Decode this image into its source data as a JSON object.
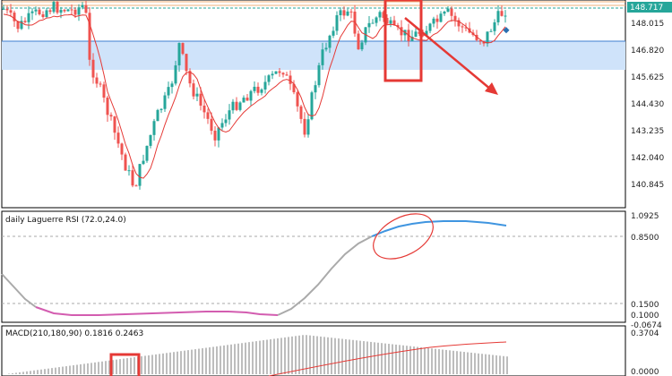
{
  "main_pane": {
    "price_levels": [
      "148.015",
      "146.820",
      "145.625",
      "144.430",
      "143.235",
      "142.040",
      "140.845"
    ],
    "current_price": "148.717",
    "colors": {
      "up": "#26a69a",
      "down": "#ef5350",
      "ma": "#e53935",
      "zone": "#cfe3fa",
      "annotation": "#e53935",
      "price_tag": "#26a69a"
    }
  },
  "laguerre_pane": {
    "title": "daily Laguerre RSI (72.0,24.0)",
    "levels": [
      "1.0925",
      "0.8500",
      "0.1500",
      "0.1000"
    ],
    "colors": {
      "rising": "#aaaaaa",
      "oversold": "#d35db0",
      "overbought": "#3f95e0"
    }
  },
  "macd_pane": {
    "title": "MACD(210,180,90) 0.1816 0.2463",
    "levels": [
      "-0.0674",
      "0.3704",
      "0.0000"
    ],
    "colors": {
      "histogram": "#bdbdbd",
      "signal": "#e53935"
    }
  }
}
